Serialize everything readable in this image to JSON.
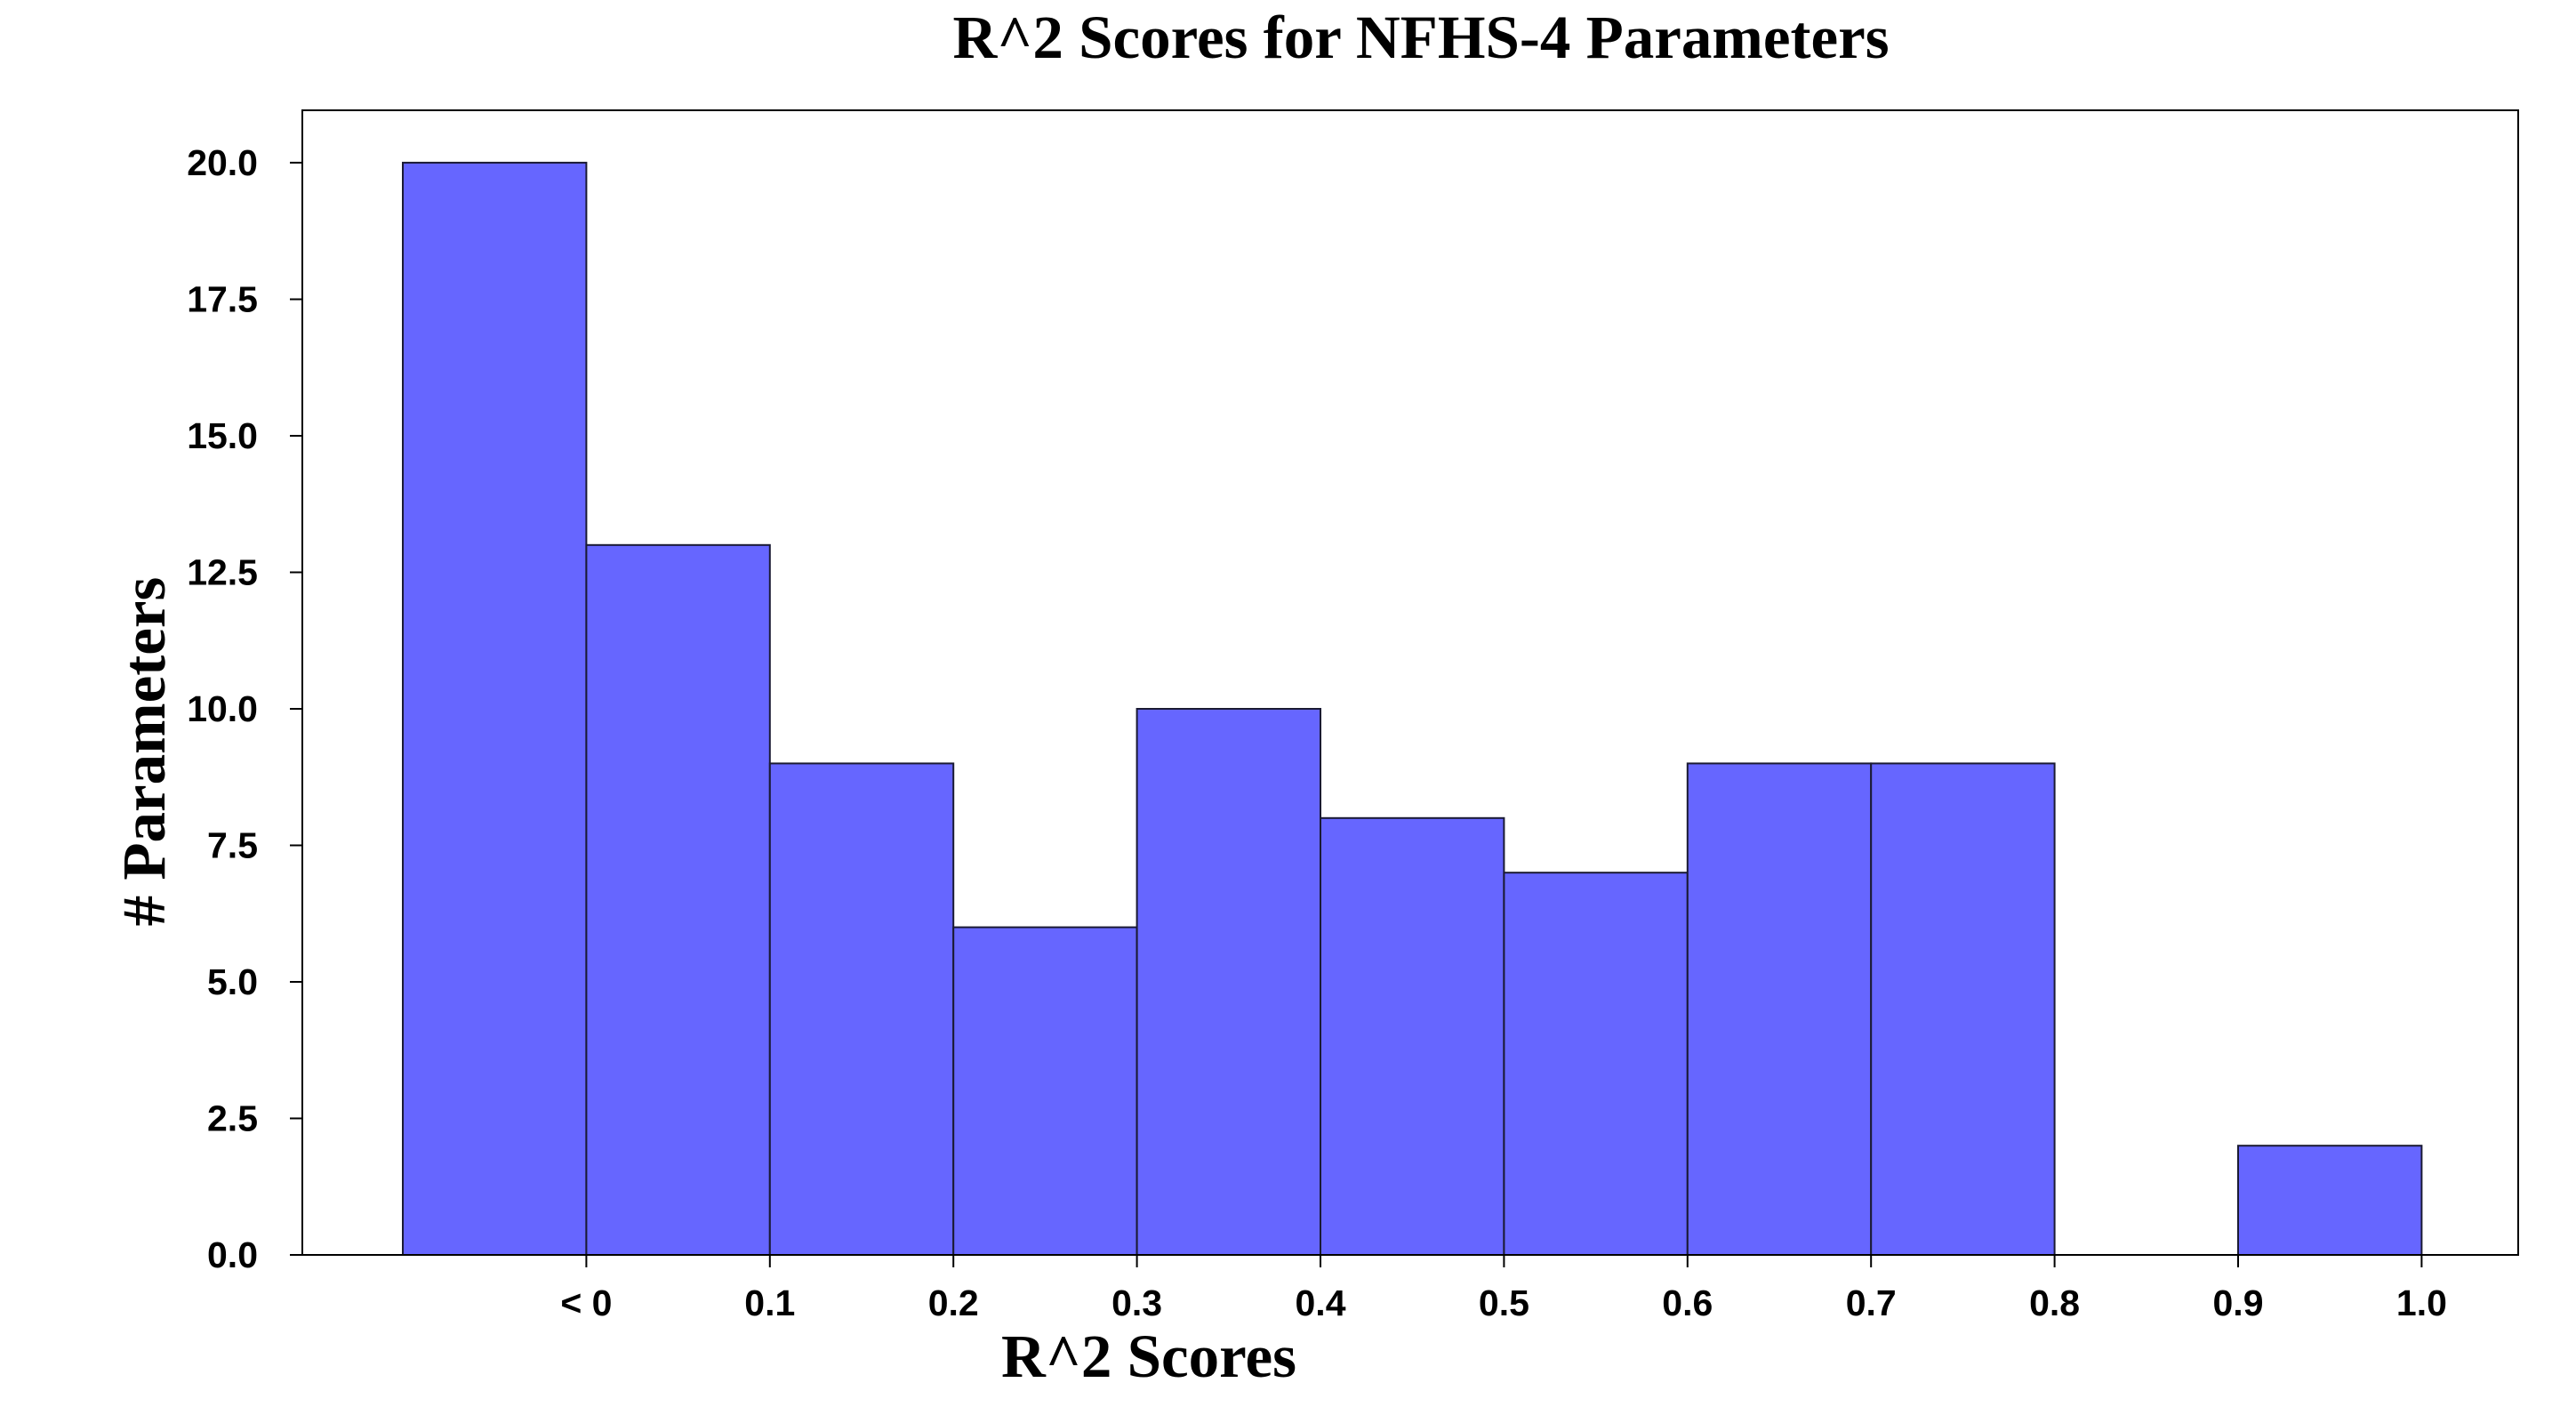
{
  "chart_data": {
    "type": "bar",
    "title": "R^2 Scores for NFHS-4 Parameters",
    "xlabel": "R^2 Scores",
    "ylabel": "# Parameters",
    "bar_color": "#6666ff",
    "bins": [
      {
        "range": "< 0",
        "value": 20
      },
      {
        "range": "0 – 0.1",
        "value": 13
      },
      {
        "range": "0.1 – 0.2",
        "value": 9
      },
      {
        "range": "0.2 – 0.3",
        "value": 6
      },
      {
        "range": "0.3 – 0.4",
        "value": 10
      },
      {
        "range": "0.4 – 0.5",
        "value": 8
      },
      {
        "range": "0.5 – 0.6",
        "value": 7
      },
      {
        "range": "0.6 – 0.7",
        "value": 9
      },
      {
        "range": "0.7 – 0.8",
        "value": 9
      },
      {
        "range": "0.8 – 0.9",
        "value": 0
      },
      {
        "range": "0.9 – 1.0",
        "value": 2
      }
    ],
    "x_tick_labels": [
      "< 0",
      "0.1",
      "0.2",
      "0.3",
      "0.4",
      "0.5",
      "0.6",
      "0.7",
      "0.8",
      "0.9",
      "1.0"
    ],
    "y_tick_labels": [
      "0.0",
      "2.5",
      "5.0",
      "7.5",
      "10.0",
      "12.5",
      "15.0",
      "17.5",
      "20.0"
    ],
    "y_ticks": [
      0,
      2.5,
      5,
      7.5,
      10,
      12.5,
      15,
      17.5,
      20
    ],
    "ylim": [
      0,
      20.96
    ],
    "grid": false,
    "legend": "none"
  }
}
